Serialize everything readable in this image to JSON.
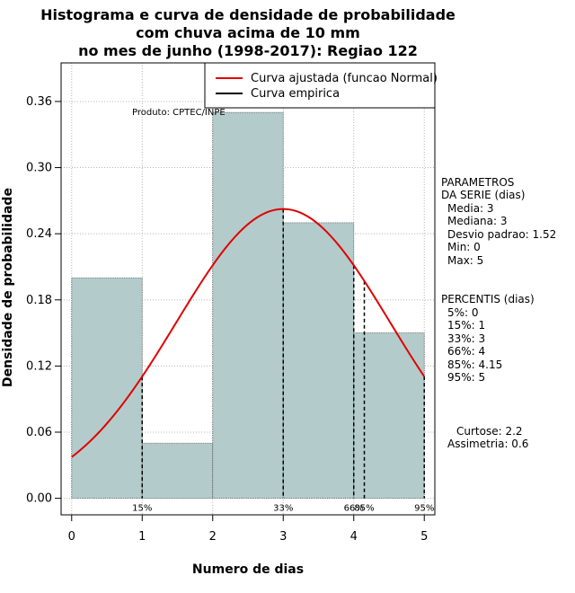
{
  "chart_data": {
    "type": "bar",
    "title_lines": [
      "Histograma e curva de densidade de probabilidade",
      "com chuva acima de 10 mm",
      "no mes de junho (1998-2017): Regiao 122"
    ],
    "xlabel": "Numero de dias",
    "ylabel": "Densidade de probabilidade",
    "xlim": [
      -0.15,
      5.15
    ],
    "ylim": [
      -0.015,
      0.395
    ],
    "x_ticks": [
      0,
      1,
      2,
      3,
      4,
      5
    ],
    "y_ticks": [
      0.0,
      0.06,
      0.12,
      0.18,
      0.24,
      0.3,
      0.36
    ],
    "y_tick_labels": [
      "0.00",
      "0.06",
      "0.12",
      "0.18",
      "0.24",
      "0.30",
      "0.36"
    ],
    "bins": [
      {
        "from": 0,
        "to": 1,
        "density": 0.2
      },
      {
        "from": 1,
        "to": 2,
        "density": 0.05
      },
      {
        "from": 2,
        "to": 3,
        "density": 0.35
      },
      {
        "from": 3,
        "to": 4,
        "density": 0.25
      },
      {
        "from": 4,
        "to": 5,
        "density": 0.15
      }
    ],
    "normal_curve": {
      "mean": 3,
      "sd": 1.52,
      "x_from": 0,
      "x_to": 5,
      "color": "#e00000"
    },
    "legend": [
      {
        "label": "Curva ajustada (funcao Normal)",
        "color": "#e00000"
      },
      {
        "label": "Curva empirica",
        "color": "#000000"
      }
    ],
    "legend_position": "top-right",
    "producer": "Produto: CPTEC/INPE",
    "percentile_markers": [
      {
        "x": 1,
        "label": "15%"
      },
      {
        "x": 3,
        "label": "33%"
      },
      {
        "x": 4,
        "label": "66%"
      },
      {
        "x": 4.15,
        "label": "85%"
      },
      {
        "x": 5,
        "label": "95%"
      }
    ],
    "grid": true,
    "bar_color": "#b3cbcb",
    "side_panel": {
      "parametros_title_1": "PARAMETROS",
      "parametros_title_2": "DA SERIE (dias)",
      "parametros": [
        "Media: 3",
        "Mediana: 3",
        "Desvio padrao: 1.52",
        "Min: 0",
        "Max: 5"
      ],
      "percentis_title": "PERCENTIS (dias)",
      "percentis": [
        "5%: 0",
        "15%: 1",
        "33%: 3",
        "66%: 4",
        "85%: 4.15",
        "95%: 5"
      ],
      "curtose": "Curtose: 2.2",
      "assimetria": "Assimetria: 0.6"
    }
  }
}
